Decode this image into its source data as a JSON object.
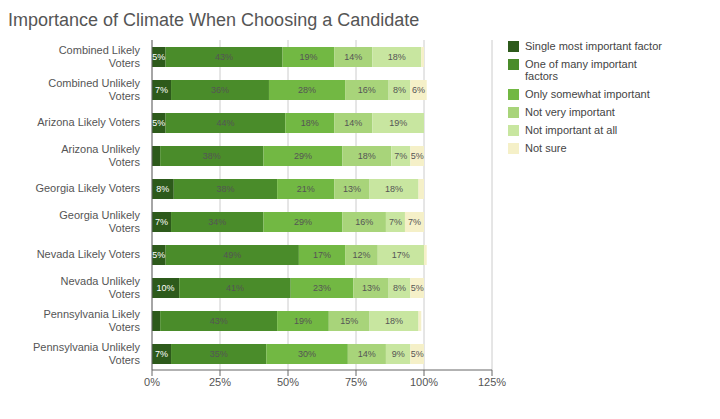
{
  "chart_data": {
    "type": "bar",
    "orientation": "horizontal",
    "stacked": true,
    "title": "Importance of Climate When Choosing a Candidate",
    "categories": [
      "Combined Likely\nVoters",
      "Combined Unlikely\nVoters",
      "Arizona Likely Voters",
      "Arizona Unlikely\nVoters",
      "Georgia Likely Voters",
      "Georgia Unlikely\nVoters",
      "Nevada Likely Voters",
      "Nevada Unlikely\nVoters",
      "Pennsylvania Likely\nVoters",
      "Pennsylvania Unlikely\nVoters"
    ],
    "series": [
      {
        "name": "Single most important factor",
        "color": "#2d5a1b",
        "values": [
          5,
          7,
          5,
          3,
          8,
          7,
          5,
          10,
          3,
          7
        ],
        "value_labels": [
          "5%",
          "7%",
          "5%",
          null,
          "8%",
          "7%",
          "5%",
          "10%",
          null,
          "7%"
        ]
      },
      {
        "name": "One of many important\nfactors",
        "color": "#4a8c2a",
        "values": [
          43,
          36,
          44,
          38,
          38,
          34,
          49,
          41,
          43,
          35
        ],
        "value_labels": [
          "43%",
          "36%",
          "44%",
          "38%",
          "38%",
          "34%",
          "49%",
          "41%",
          "43%",
          "35%"
        ]
      },
      {
        "name": "Only somewhat important",
        "color": "#72b843",
        "values": [
          19,
          28,
          18,
          29,
          21,
          29,
          17,
          23,
          19,
          30
        ],
        "value_labels": [
          "19%",
          "28%",
          "18%",
          "29%",
          "21%",
          "29%",
          "17%",
          "23%",
          "19%",
          "30%"
        ]
      },
      {
        "name": "Not very important",
        "color": "#a8d47a",
        "values": [
          14,
          16,
          14,
          18,
          13,
          16,
          12,
          13,
          15,
          14
        ],
        "value_labels": [
          "14%",
          "16%",
          "14%",
          "18%",
          "13%",
          "16%",
          "12%",
          "13%",
          "15%",
          "14%"
        ]
      },
      {
        "name": "Not important at all",
        "color": "#c8e6a0",
        "values": [
          18,
          8,
          19,
          7,
          18,
          7,
          17,
          8,
          18,
          9
        ],
        "value_labels": [
          "18%",
          "8%",
          "19%",
          "7%",
          "18%",
          "7%",
          "17%",
          "8%",
          "18%",
          "9%"
        ]
      },
      {
        "name": "Not sure",
        "color": "#f5f0c8",
        "values": [
          1,
          6,
          0,
          5,
          2,
          7,
          1,
          5,
          1,
          5
        ],
        "value_labels": [
          null,
          "6%",
          null,
          "5%",
          null,
          "7%",
          null,
          "5%",
          null,
          "5%"
        ]
      }
    ],
    "xlim": [
      0,
      125
    ],
    "xticks": [
      {
        "value": 0,
        "label": "0%"
      },
      {
        "value": 25,
        "label": "25%"
      },
      {
        "value": 50,
        "label": "50%"
      },
      {
        "value": 75,
        "label": "75%"
      },
      {
        "value": 100,
        "label": "100%"
      },
      {
        "value": 125,
        "label": "125%"
      }
    ],
    "grid": true,
    "data_labels": true,
    "legend": "right"
  }
}
